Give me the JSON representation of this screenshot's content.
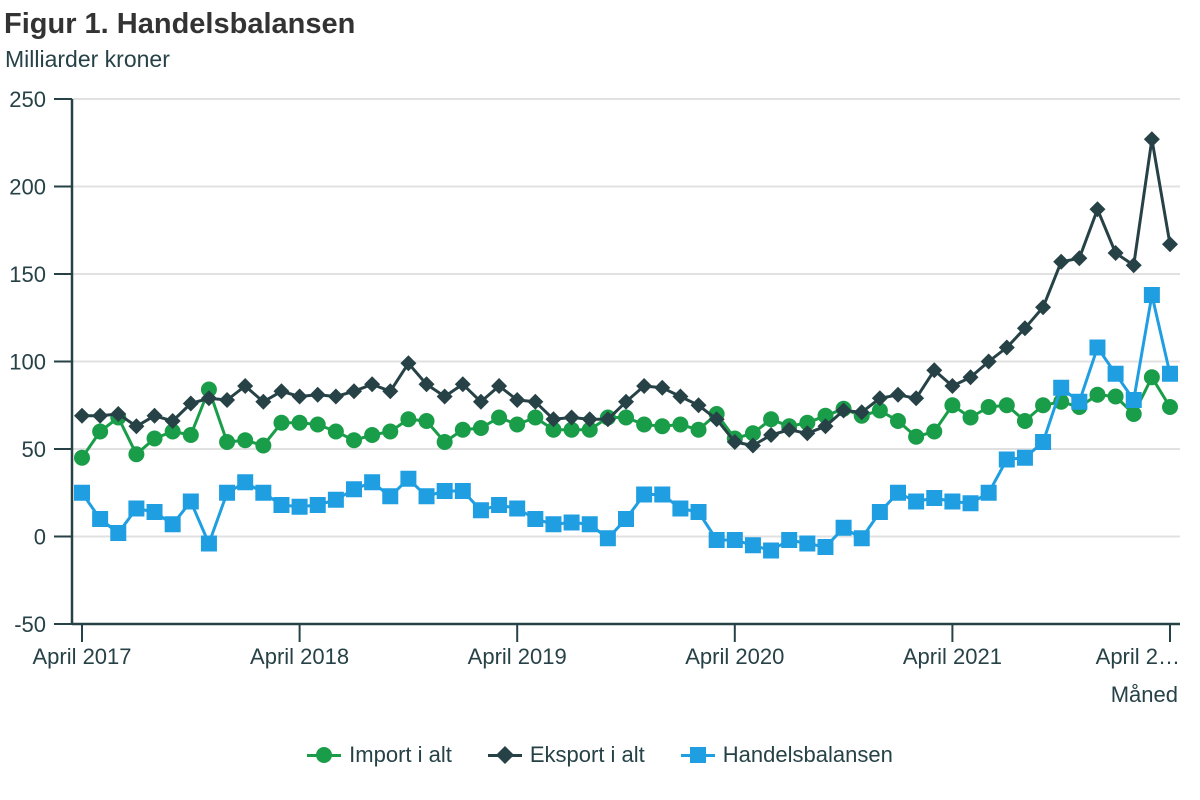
{
  "title": "Figur 1. Handelsbalansen",
  "subtitle": "Milliarder kroner",
  "chart_data": {
    "type": "line",
    "title": "Figur 1. Handelsbalansen",
    "ylabel": "Milliarder kroner",
    "xlabel": "Måned",
    "ylim": [
      -50,
      250
    ],
    "yticks": [
      250,
      200,
      150,
      100,
      50,
      0,
      -50
    ],
    "xtick_labels": [
      "April 2017",
      "April 2018",
      "April 2019",
      "April 2020",
      "April 2021",
      "April 2…"
    ],
    "xtick_index": [
      0,
      12,
      24,
      36,
      48,
      60
    ],
    "grid": true,
    "legend_position": "bottom",
    "series": [
      {
        "name": "Import i alt",
        "color": "#1a9d49",
        "marker": "circle",
        "values": [
          45,
          60,
          68,
          47,
          56,
          60,
          58,
          84,
          54,
          55,
          52,
          65,
          65,
          64,
          60,
          55,
          58,
          60,
          67,
          66,
          54,
          61,
          62,
          68,
          64,
          68,
          61,
          61,
          61,
          68,
          68,
          64,
          63,
          64,
          61,
          70,
          56,
          59,
          67,
          63,
          65,
          69,
          73,
          69,
          72,
          66,
          57,
          60,
          75,
          68,
          74,
          75,
          66,
          75,
          77,
          74,
          81,
          80,
          70,
          91,
          74
        ]
      },
      {
        "name": "Eksport i alt",
        "color": "#274247",
        "marker": "diamond",
        "values": [
          69,
          69,
          70,
          63,
          69,
          66,
          76,
          79,
          78,
          86,
          77,
          83,
          80,
          81,
          80,
          83,
          87,
          83,
          99,
          87,
          80,
          87,
          77,
          86,
          78,
          77,
          67,
          68,
          67,
          67,
          77,
          86,
          85,
          80,
          75,
          67,
          54,
          52,
          58,
          61,
          59,
          63,
          72,
          71,
          79,
          81,
          79,
          95,
          86,
          91,
          100,
          108,
          119,
          131,
          157,
          159,
          187,
          162,
          155,
          227,
          167
        ]
      },
      {
        "name": "Handelsbalansen",
        "color": "#1f9ee2",
        "marker": "square",
        "values": [
          25,
          10,
          2,
          16,
          14,
          7,
          20,
          -4,
          25,
          31,
          25,
          18,
          17,
          18,
          21,
          27,
          31,
          23,
          33,
          23,
          26,
          26,
          15,
          18,
          16,
          10,
          7,
          8,
          7,
          -1,
          10,
          24,
          24,
          16,
          14,
          -2,
          -2,
          -5,
          -8,
          -2,
          -4,
          -6,
          5,
          -1,
          14,
          25,
          20,
          22,
          20,
          19,
          25,
          44,
          45,
          54,
          85,
          77,
          108,
          93,
          78,
          138,
          93
        ]
      }
    ]
  },
  "legend": [
    {
      "label": "Import i alt"
    },
    {
      "label": "Eksport i alt"
    },
    {
      "label": "Handelsbalansen"
    }
  ]
}
